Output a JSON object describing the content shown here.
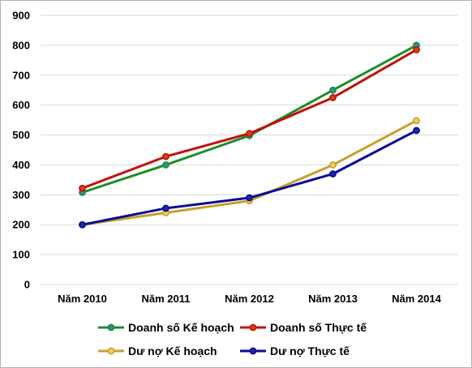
{
  "chart_data": {
    "type": "line",
    "categories": [
      "Năm 2010",
      "Năm 2011",
      "Năm 2012",
      "Năm 2013",
      "Năm 2014"
    ],
    "ylim": [
      0,
      900
    ],
    "yticks": [
      0,
      100,
      200,
      300,
      400,
      500,
      600,
      700,
      800,
      900
    ],
    "grid": "horizontal",
    "legend_position": "bottom",
    "series": [
      {
        "name": "Doanh số Kế hoạch",
        "values": [
          308,
          400,
          498,
          650,
          800
        ],
        "color": "#1e8c2a",
        "marker_color": "#2a8fa0"
      },
      {
        "name": "Doanh số Thực tế",
        "values": [
          322,
          428,
          505,
          625,
          785
        ],
        "color": "#c0120c",
        "marker_color": "#d4401a"
      },
      {
        "name": "Dư nợ Kế hoạch",
        "values": [
          200,
          240,
          280,
          400,
          548
        ],
        "color": "#c9a02c",
        "marker_color": "#f0d060"
      },
      {
        "name": "Dư nợ Thực tế",
        "values": [
          200,
          255,
          290,
          370,
          515
        ],
        "color": "#0a0a9a",
        "marker_color": "#1a2aa0"
      }
    ]
  }
}
